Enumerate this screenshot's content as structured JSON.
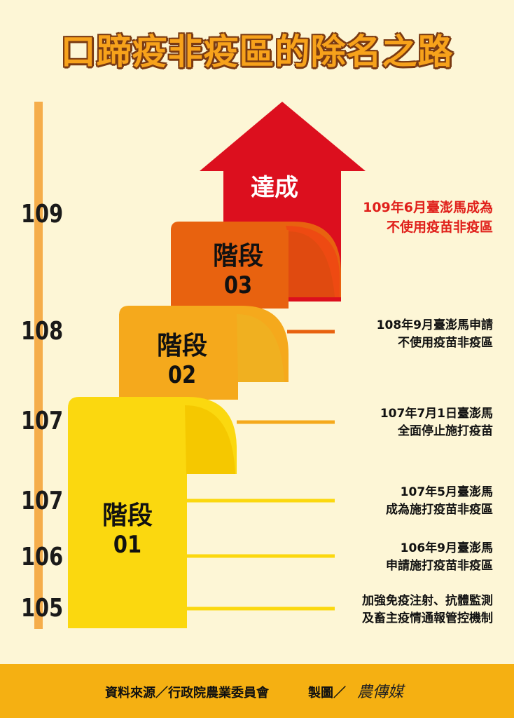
{
  "title": "口蹄疫非疫區的除名之路",
  "years": [
    "109",
    "108",
    "107",
    "107",
    "106",
    "105"
  ],
  "stages": [
    {
      "label": "階段",
      "num": "01"
    },
    {
      "label": "階段",
      "num": "02"
    },
    {
      "label": "階段",
      "num": "03"
    }
  ],
  "achieve": "達成",
  "notes": [
    {
      "line1": "109年6月臺澎馬成為",
      "line2": "不使用疫苗非疫區"
    },
    {
      "line1": "108年9月臺澎馬申請",
      "line2": "不使用疫苗非疫區"
    },
    {
      "line1": "107年7月1日臺澎馬",
      "line2": "全面停止施打疫苗"
    },
    {
      "line1": "107年5月臺澎馬",
      "line2": "成為施打疫苗非疫區"
    },
    {
      "line1": "106年9月臺澎馬",
      "line2": "申請施打疫苗非疫區"
    },
    {
      "line1": "加強免疫注射、抗體監測",
      "line2": "及畜主疫情通報管控機制"
    }
  ],
  "footer": {
    "source": "資料來源／行政院農業委員會",
    "maker": "製圖／",
    "logo": "農傳媒"
  },
  "colors": {
    "stage1": "#fbd80f",
    "stage2": "#f5a91c",
    "stage3": "#e8620f",
    "arrow": "#dc0f1e",
    "axis": "#f5ad4a",
    "footer": "#f5b012",
    "note_red": "#e0201b"
  }
}
